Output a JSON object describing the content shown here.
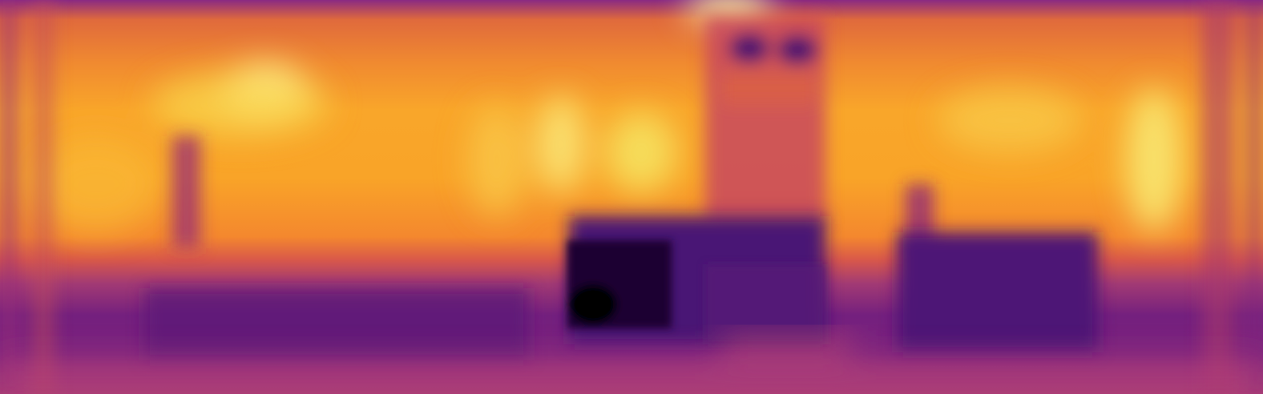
{
  "image": {
    "kind": "false-color depth map",
    "colormap": "inferno",
    "palette": {
      "near": "#000004",
      "deep_purple": "#3b0f70",
      "purple": "#7a1f7a",
      "magenta": "#b5367a",
      "red_orange": "#e55c30",
      "orange": "#f98e09",
      "yellow": "#f4d13a",
      "far": "#fcffa4"
    }
  }
}
